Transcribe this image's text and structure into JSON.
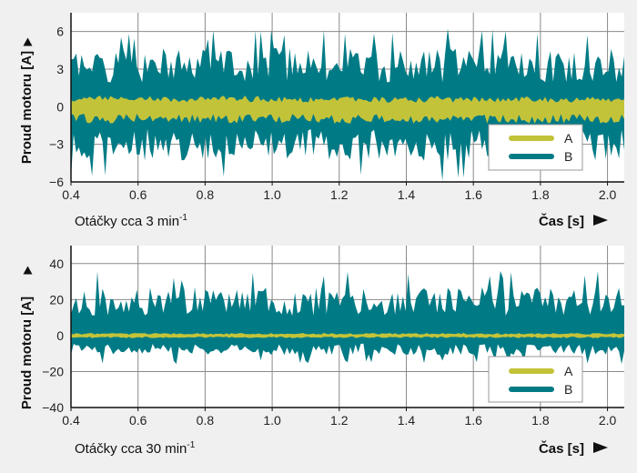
{
  "colors": {
    "A": "#c3c33a",
    "B": "#007b85",
    "background": "#f0f0f1",
    "plot_background": "#ffffff",
    "grid": "#8a8a8a"
  },
  "chart_data": [
    {
      "type": "area",
      "caption": "Otáčky cca 3 min",
      "caption_sup": "-1",
      "ylabel": "Proud motoru [A]",
      "xlabel": "Čas [s]",
      "xlim": [
        0.4,
        2.05
      ],
      "ylim": [
        -6,
        7.5
      ],
      "xticks": [
        0.4,
        0.6,
        0.8,
        1.0,
        1.2,
        1.4,
        1.6,
        1.8,
        2.0
      ],
      "xtick_labels": [
        "0.4",
        "0.6",
        "0.8",
        "1.0",
        "1.2",
        "1.4",
        "1.6",
        "1.8",
        "2.0"
      ],
      "yticks": [
        -6,
        -3,
        0,
        3,
        6
      ],
      "ytick_labels": [
        "−6",
        "−3",
        "0",
        "3",
        "6"
      ],
      "grid": true,
      "legend_position": "bottom-right",
      "series": [
        {
          "name": "B",
          "color": "#007b85",
          "min_approx": -6,
          "max_approx": 6.3,
          "typical_upper": 3.5,
          "typical_lower": -3.2
        },
        {
          "name": "A",
          "color": "#c3c33a",
          "min_approx": -1.3,
          "max_approx": 0.9,
          "typical_upper": 0.6,
          "typical_lower": -1.0
        }
      ]
    },
    {
      "type": "area",
      "caption": "Otáčky cca 30 min",
      "caption_sup": "-1",
      "ylabel": "Proud motoru [A]",
      "xlabel": "Čas [s]",
      "xlim": [
        0.4,
        2.05
      ],
      "ylim": [
        -40,
        50
      ],
      "xticks": [
        0.4,
        0.6,
        0.8,
        1.0,
        1.2,
        1.4,
        1.6,
        1.8,
        2.0
      ],
      "xtick_labels": [
        "0.4",
        "0.6",
        "0.8",
        "1.0",
        "1.2",
        "1.4",
        "1.6",
        "1.8",
        "2.0"
      ],
      "yticks": [
        -40,
        -20,
        0,
        20,
        40
      ],
      "ytick_labels": [
        "−40",
        "−20",
        "0",
        "20",
        "40"
      ],
      "grid": true,
      "legend_position": "bottom-right",
      "series": [
        {
          "name": "B",
          "color": "#007b85",
          "min_approx": -16,
          "max_approx": 36,
          "typical_upper": 20,
          "typical_lower": -8
        },
        {
          "name": "A",
          "color": "#c3c33a",
          "min_approx": -1.5,
          "max_approx": 1.5,
          "typical_upper": 1,
          "typical_lower": -1
        }
      ]
    }
  ]
}
